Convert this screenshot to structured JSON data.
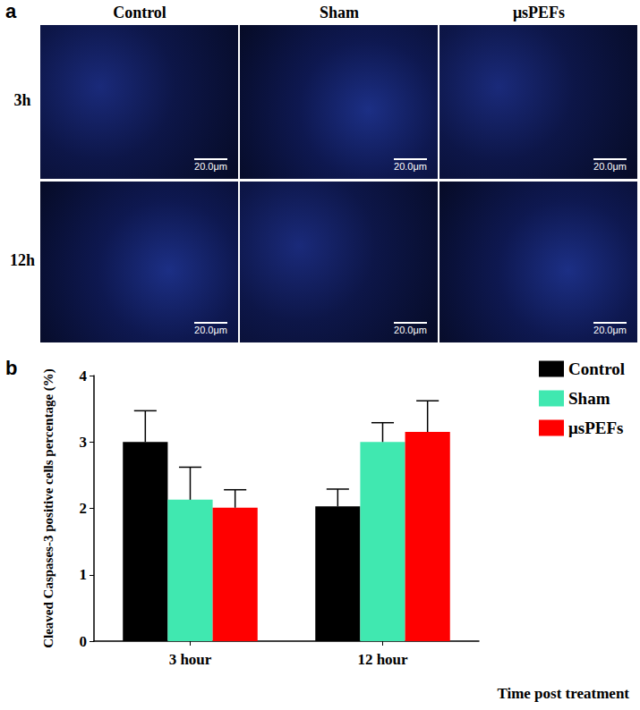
{
  "panel_a": {
    "label": "a",
    "columns": [
      "Control",
      "Sham",
      "μsPEFs"
    ],
    "rows": [
      "3h",
      "12h"
    ],
    "scale_bar": "20.0μm"
  },
  "chart_data": {
    "type": "bar",
    "panel_label": "b",
    "categories": [
      "3 hour",
      "12 hour"
    ],
    "series": [
      {
        "name": "Control",
        "color": "#000000",
        "values": [
          3.0,
          2.03
        ],
        "error": [
          0.47,
          0.26
        ]
      },
      {
        "name": "Sham",
        "color": "#40e8b0",
        "values": [
          2.13,
          3.0
        ],
        "error": [
          0.49,
          0.29
        ]
      },
      {
        "name": "μsPEFs",
        "color": "#ff0000",
        "values": [
          2.01,
          3.15
        ],
        "error": [
          0.27,
          0.47
        ]
      }
    ],
    "y_label": "Cleaved Caspases-3 positive cells percentage (%)",
    "x_label": "Time post treatment",
    "ylim": [
      0,
      4
    ],
    "yticks": [
      0,
      1,
      2,
      3,
      4
    ],
    "grid": false,
    "legend": "top-right"
  }
}
